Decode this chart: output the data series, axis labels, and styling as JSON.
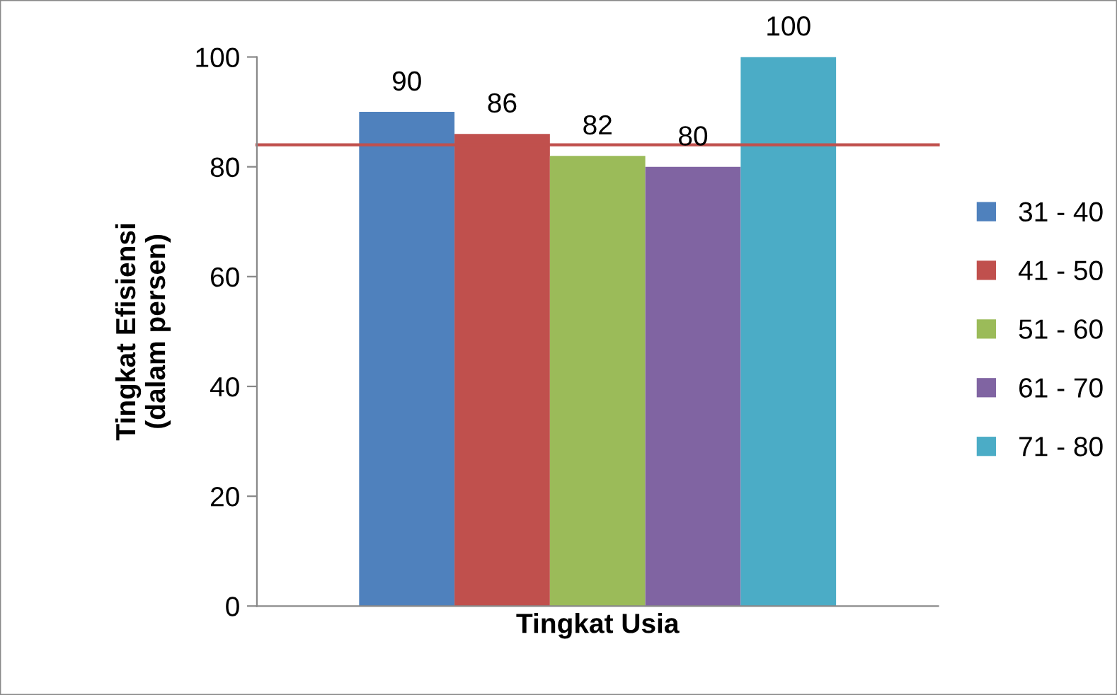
{
  "chart_data": {
    "type": "bar",
    "xlabel": "Tingkat Usia",
    "ylabel": "Tingkat Efisiensi\n(dalam persen)",
    "categories": [
      null
    ],
    "series": [
      {
        "name": "31 - 40",
        "color": "#4f81bd",
        "values": [
          90
        ]
      },
      {
        "name": "41 - 50",
        "color": "#c0504d",
        "values": [
          86
        ]
      },
      {
        "name": "51 - 60",
        "color": "#9bbb59",
        "values": [
          82
        ]
      },
      {
        "name": "61 - 70",
        "color": "#8064a2",
        "values": [
          80
        ]
      },
      {
        "name": "71 - 80",
        "color": "#4bacc6",
        "values": [
          100
        ]
      }
    ],
    "ylim": [
      0,
      100
    ],
    "yticks": [
      0,
      20,
      40,
      60,
      80,
      100
    ],
    "data_labels": true,
    "legend": "right",
    "grid": false,
    "ref_lines": [
      {
        "axis": "y",
        "value": 84,
        "color": "#c0504d"
      }
    ]
  }
}
